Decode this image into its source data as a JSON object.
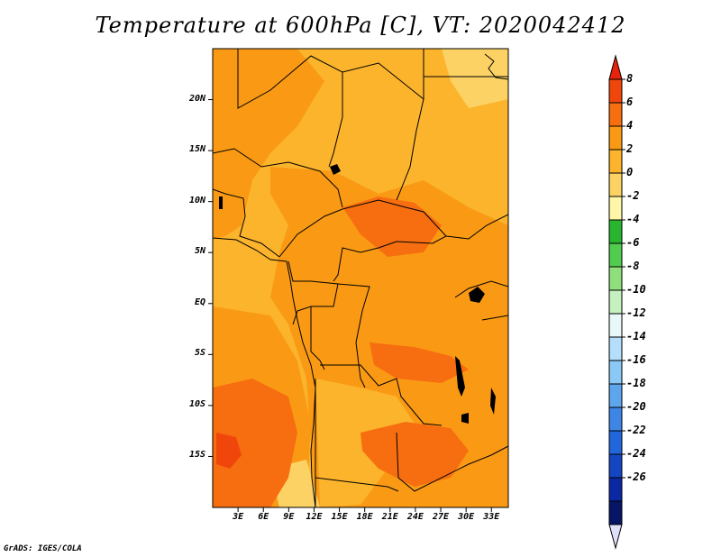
{
  "title": "Temperature at 600hPa [C], VT: 2020042412",
  "credit": "GrADS: IGES/COLA",
  "map": {
    "lon_range": [
      0,
      35
    ],
    "lat_range": [
      -20,
      25
    ],
    "y_ticks": [
      {
        "label": "20N",
        "lat": 20
      },
      {
        "label": "15N",
        "lat": 15
      },
      {
        "label": "10N",
        "lat": 10
      },
      {
        "label": "5N",
        "lat": 5
      },
      {
        "label": "EQ",
        "lat": 0
      },
      {
        "label": "5S",
        "lat": -5
      },
      {
        "label": "10S",
        "lat": -10
      },
      {
        "label": "15S",
        "lat": -15
      }
    ],
    "x_ticks": [
      {
        "label": "3E",
        "lon": 3
      },
      {
        "label": "6E",
        "lon": 6
      },
      {
        "label": "9E",
        "lon": 9
      },
      {
        "label": "12E",
        "lon": 12
      },
      {
        "label": "15E",
        "lon": 15
      },
      {
        "label": "18E",
        "lon": 18
      },
      {
        "label": "21E",
        "lon": 21
      },
      {
        "label": "24E",
        "lon": 24
      },
      {
        "label": "27E",
        "lon": 27
      },
      {
        "label": "30E",
        "lon": 30
      },
      {
        "label": "33E",
        "lon": 33
      }
    ]
  },
  "colorbar": {
    "labels": [
      "8",
      "6",
      "4",
      "2",
      "0",
      "-2",
      "-4",
      "-6",
      "-8",
      "-10",
      "-12",
      "-14",
      "-16",
      "-18",
      "-20",
      "-22",
      "-24",
      "-26"
    ],
    "colors": [
      "#e8230c",
      "#f0460c",
      "#f66e10",
      "#fa9a14",
      "#fbb42c",
      "#fdd265",
      "#fff6a8",
      "#29b52e",
      "#52cc4e",
      "#8fe07c",
      "#c5f0c0",
      "#e8f7f7",
      "#b4defa",
      "#8ac8f6",
      "#5da6ee",
      "#3e86e6",
      "#2266dd",
      "#1446c4",
      "#0b28a4",
      "#071566",
      "#e0e0fa"
    ]
  },
  "temperature_colors": {
    "c2": "#fbb42c",
    "c4": "#fa9a14",
    "c6": "#f66e10",
    "c8": "#f0460c",
    "c0": "#fdd265"
  }
}
